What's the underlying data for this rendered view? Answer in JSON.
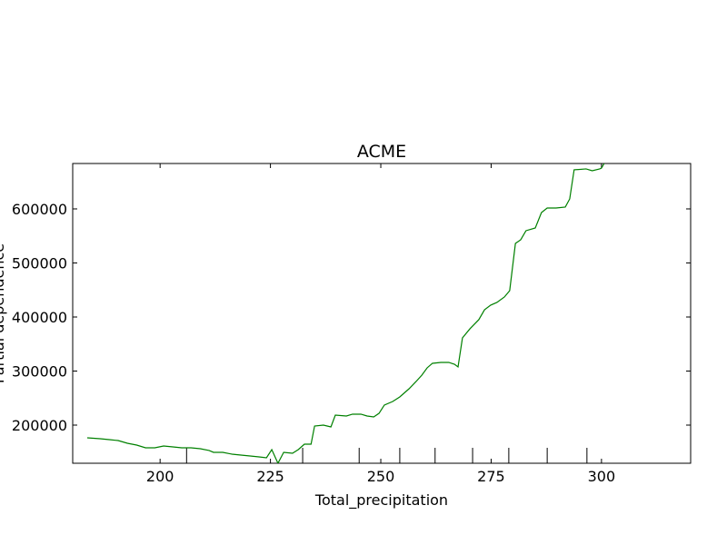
{
  "chart_data": {
    "type": "line",
    "title": "ACME",
    "x_label": "Total_precipitation",
    "y_label": "Partial dependence",
    "x": [
      183.5,
      186.4,
      188.5,
      190.5,
      192.6,
      194.7,
      196.7,
      198.8,
      200.8,
      202.9,
      204.9,
      207.0,
      209.1,
      211.1,
      212.1,
      214.2,
      216.3,
      218.3,
      220.4,
      222.4,
      224.1,
      225.3,
      226.7,
      228.0,
      230.0,
      231.3,
      232.7,
      234.2,
      235.0,
      237.0,
      238.7,
      239.7,
      242.2,
      243.6,
      245.5,
      246.9,
      248.4,
      249.6,
      250.8,
      252.7,
      254.3,
      256.4,
      258.0,
      259.3,
      260.5,
      261.7,
      263.6,
      265.4,
      266.7,
      267.5,
      268.5,
      270.2,
      272.2,
      273.5,
      274.9,
      276.3,
      278.0,
      279.2,
      280.5,
      281.7,
      282.9,
      285.0,
      286.4,
      287.7,
      289.7,
      291.8,
      292.8,
      293.8,
      296.5,
      297.9,
      299.6,
      300.0,
      300.6
    ],
    "series": [
      {
        "name": "Partial dependence",
        "color": "#008000",
        "values": [
          176500,
          174800,
          173100,
          171400,
          166400,
          163000,
          158000,
          158000,
          161300,
          159700,
          158000,
          158000,
          156300,
          153000,
          149600,
          149600,
          146200,
          144500,
          142900,
          141200,
          139500,
          154600,
          129400,
          149600,
          147900,
          154600,
          164700,
          164700,
          198300,
          200000,
          196600,
          218500,
          216800,
          220200,
          220200,
          216800,
          215100,
          221800,
          237000,
          243700,
          252100,
          267200,
          280700,
          292400,
          305900,
          314300,
          316000,
          316000,
          312600,
          307600,
          361300,
          378200,
          395000,
          413400,
          421900,
          426900,
          437000,
          448700,
          536100,
          542900,
          559700,
          564700,
          593300,
          601700,
          601700,
          603400,
          618500,
          672300,
          674000,
          670600,
          674000,
          675600,
          684000
        ]
      }
    ],
    "deciles": [
      206.0,
      232.3,
      245.1,
      254.3,
      262.3,
      270.8,
      279.0,
      287.7,
      296.7
    ],
    "xlim": [
      180.2,
      320.2
    ],
    "ylim": [
      129400,
      684000
    ],
    "xticks": [
      200,
      225,
      250,
      275,
      300
    ],
    "yticks": [
      200000,
      300000,
      400000,
      500000,
      600000
    ]
  }
}
